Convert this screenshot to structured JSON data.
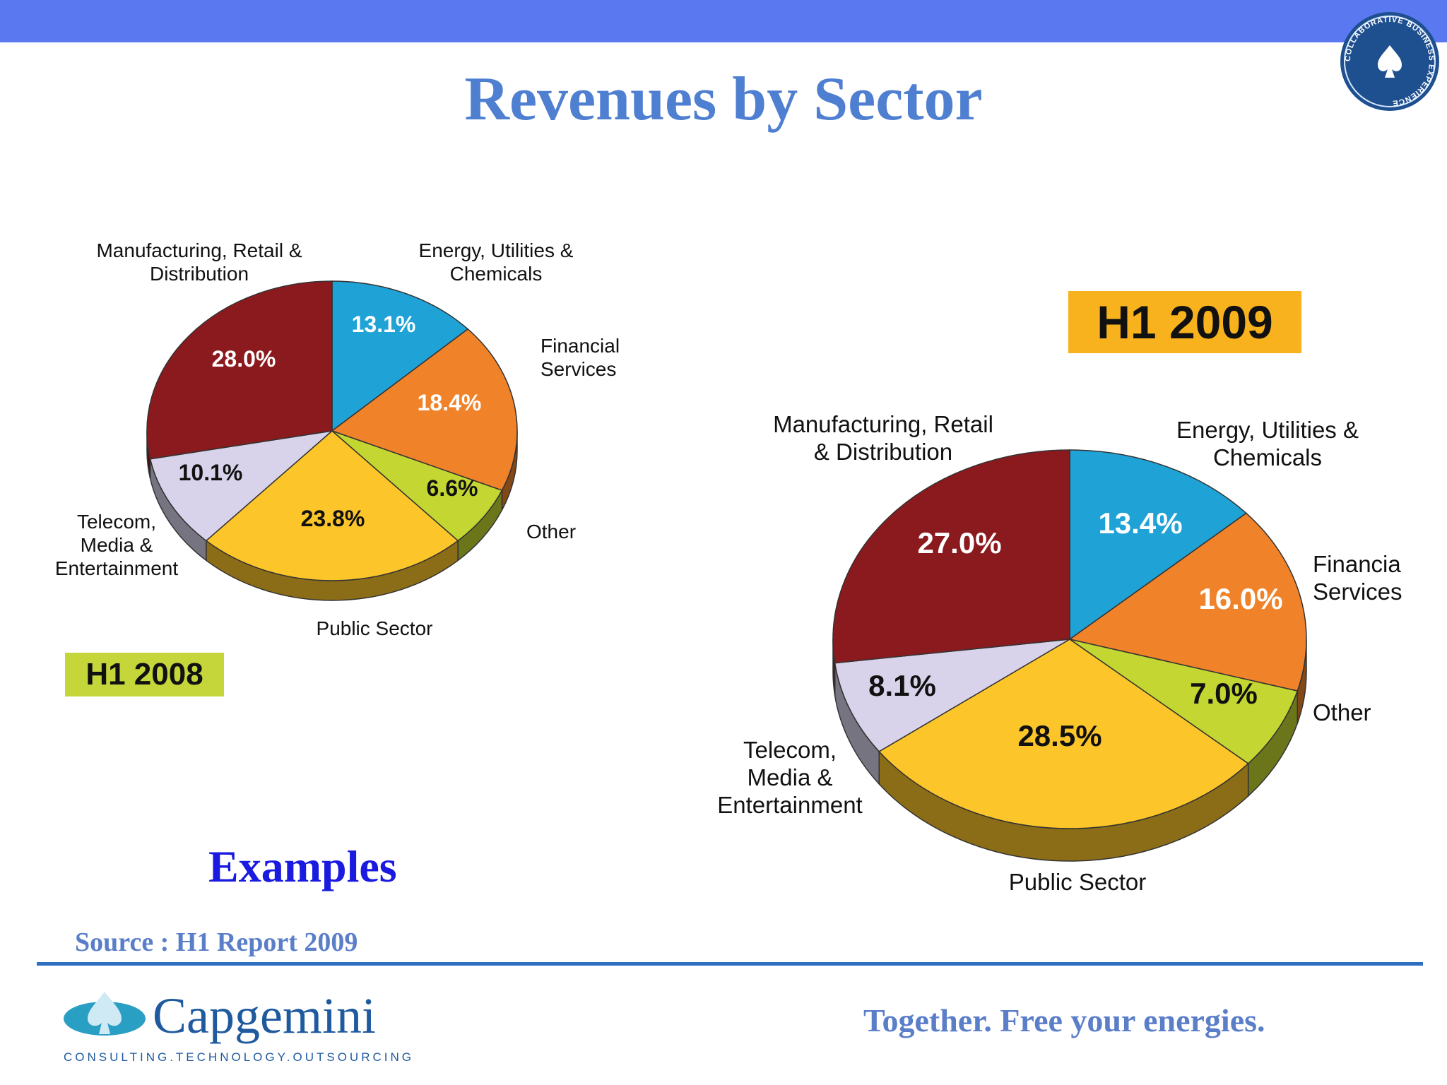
{
  "slide": {
    "title": "Revenues by Sector",
    "examples": "Examples",
    "source": "Source : H1 Report 2009",
    "tagline": "Together. Free your energies.",
    "logo_text": "Capgemini",
    "logo_subtext": "CONSULTING.TECHNOLOGY.OUTSOURCING",
    "seal_text": "COLLABORATIVE BUSINESS EXPERIENCE",
    "top_bar_color": "#5a78f0"
  },
  "chart_data": [
    {
      "type": "pie",
      "title": "H1 2008",
      "slices": [
        {
          "label": "Energy, Utilities & Chemicals",
          "value": 13.1,
          "value_label": "13.1%",
          "color": "#1fa2d6"
        },
        {
          "label": "Financial Services",
          "value": 18.4,
          "value_label": "18.4%",
          "color": "#f0822a"
        },
        {
          "label": "Other",
          "value": 6.6,
          "value_label": "6.6%",
          "color": "#c3d631"
        },
        {
          "label": "Public Sector",
          "value": 23.8,
          "value_label": "23.8%",
          "color": "#fcc52a"
        },
        {
          "label": "Telecom, Media & Entertainment",
          "value": 10.1,
          "value_label": "10.1%",
          "color": "#d8d3ea"
        },
        {
          "label": "Manufacturing, Retail & Distribution",
          "value": 28.0,
          "value_label": "28.0%",
          "color": "#8b1a1e"
        }
      ]
    },
    {
      "type": "pie",
      "title": "H1 2009",
      "slices": [
        {
          "label": "Energy, Utilities & Chemicals",
          "value": 13.4,
          "value_label": "13.4%",
          "color": "#1fa2d6"
        },
        {
          "label": "Financia Services",
          "value": 16.0,
          "value_label": "16.0%",
          "color": "#f0822a"
        },
        {
          "label": "Other",
          "value": 7.0,
          "value_label": "7.0%",
          "color": "#c3d631"
        },
        {
          "label": "Public Sector",
          "value": 28.5,
          "value_label": "28.5%",
          "color": "#fcc52a"
        },
        {
          "label": "Telecom, Media & Entertainment",
          "value": 8.1,
          "value_label": "8.1%",
          "color": "#d8d3ea"
        },
        {
          "label": "Manufacturing, Retail & Distribution",
          "value": 27.0,
          "value_label": "27.0%",
          "color": "#8b1a1e"
        }
      ]
    }
  ]
}
